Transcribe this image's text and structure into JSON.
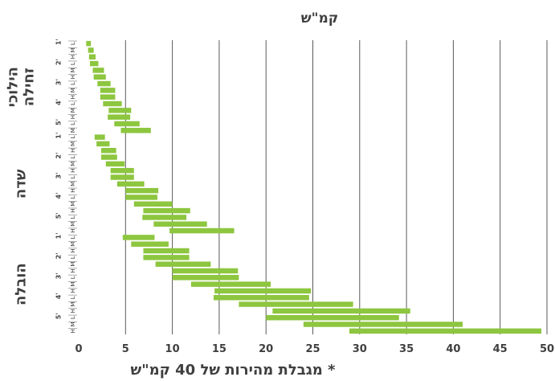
{
  "chart_data": {
    "type": "bar",
    "orientation": "horizontal-floating",
    "title": "קמ\"ש",
    "note": "* מגבלת מהירות של 40 קמ\"ש",
    "xlim": [
      0,
      50
    ],
    "xticks": [
      0,
      5,
      10,
      15,
      20,
      25,
      30,
      35,
      40,
      45,
      50
    ],
    "grid": true,
    "bar_color": "#8dc63f",
    "groups": [
      {
        "label": "הילוכי זחילה",
        "subgroups": [
          {
            "label": "1'",
            "rows": [
              {
                "tag": "L",
                "range": [
                  0.8,
                  1.3
                ]
              },
              {
                "tag": "M",
                "range": [
                  1.0,
                  1.6
                ]
              },
              {
                "tag": "H",
                "range": [
                  1.1,
                  1.8
                ]
              }
            ]
          },
          {
            "label": "2'",
            "rows": [
              {
                "tag": "L",
                "range": [
                  1.2,
                  2.1
                ]
              },
              {
                "tag": "M",
                "range": [
                  1.5,
                  2.7
                ]
              },
              {
                "tag": "H",
                "range": [
                  1.6,
                  2.9
                ]
              }
            ]
          },
          {
            "label": "3'",
            "rows": [
              {
                "tag": "L",
                "range": [
                  2.0,
                  3.4
                ]
              },
              {
                "tag": "M",
                "range": [
                  2.3,
                  3.9
                ]
              },
              {
                "tag": "H",
                "range": [
                  2.3,
                  3.9
                ]
              }
            ]
          },
          {
            "label": "4'",
            "rows": [
              {
                "tag": "L",
                "range": [
                  2.6,
                  4.6
                ]
              },
              {
                "tag": "M",
                "range": [
                  3.2,
                  5.6
                ]
              },
              {
                "tag": "H",
                "range": [
                  3.1,
                  5.5
                ]
              }
            ]
          },
          {
            "label": "5'",
            "rows": [
              {
                "tag": "L",
                "range": [
                  3.8,
                  6.5
                ]
              },
              {
                "tag": "M",
                "range": [
                  4.5,
                  7.7
                ]
              }
            ]
          }
        ]
      },
      {
        "label": "שדה",
        "subgroups": [
          {
            "label": "1'",
            "rows": [
              {
                "tag": "L",
                "range": [
                  1.7,
                  2.8
                ]
              },
              {
                "tag": "M",
                "range": [
                  1.9,
                  3.3
                ]
              },
              {
                "tag": "H",
                "range": [
                  2.4,
                  4.0
                ]
              }
            ]
          },
          {
            "label": "2'",
            "rows": [
              {
                "tag": "L",
                "range": [
                  2.4,
                  4.1
                ]
              },
              {
                "tag": "M",
                "range": [
                  2.9,
                  4.9
                ]
              },
              {
                "tag": "H",
                "range": [
                  3.4,
                  5.9
                ]
              }
            ]
          },
          {
            "label": "3'",
            "rows": [
              {
                "tag": "L",
                "range": [
                  3.4,
                  5.9
                ]
              },
              {
                "tag": "M",
                "range": [
                  4.1,
                  7.0
                ]
              },
              {
                "tag": "H",
                "range": [
                  5.0,
                  8.5
                ]
              }
            ]
          },
          {
            "label": "4'",
            "rows": [
              {
                "tag": "L",
                "range": [
                  5.0,
                  8.4
                ]
              },
              {
                "tag": "M",
                "range": [
                  5.9,
                  10.0
                ]
              },
              {
                "tag": "H",
                "range": [
                  6.9,
                  11.9
                ]
              }
            ]
          },
          {
            "label": "5'",
            "rows": [
              {
                "tag": "L",
                "range": [
                  6.8,
                  11.5
                ]
              },
              {
                "tag": "M",
                "range": [
                  8.0,
                  13.7
                ]
              },
              {
                "tag": "H",
                "range": [
                  9.7,
                  16.6
                ]
              }
            ]
          }
        ]
      },
      {
        "label": "הובלה",
        "subgroups": [
          {
            "label": "1'",
            "rows": [
              {
                "tag": "L",
                "range": [
                  4.7,
                  8.1
                ]
              },
              {
                "tag": "M",
                "range": [
                  5.6,
                  9.6
                ]
              },
              {
                "tag": "H",
                "range": [
                  6.9,
                  11.8
                ]
              }
            ]
          },
          {
            "label": "2'",
            "rows": [
              {
                "tag": "L",
                "range": [
                  6.9,
                  11.8
                ]
              },
              {
                "tag": "M",
                "range": [
                  8.2,
                  14.1
                ]
              },
              {
                "tag": "H",
                "range": [
                  10.0,
                  17.0
                ]
              }
            ]
          },
          {
            "label": "3'",
            "rows": [
              {
                "tag": "L",
                "range": [
                  10.0,
                  17.1
                ]
              },
              {
                "tag": "M",
                "range": [
                  12.0,
                  20.5
                ]
              },
              {
                "tag": "H",
                "range": [
                  14.5,
                  24.8
                ]
              }
            ]
          },
          {
            "label": "4'",
            "rows": [
              {
                "tag": "L",
                "range": [
                  14.4,
                  24.6
                ]
              },
              {
                "tag": "M",
                "range": [
                  17.1,
                  29.3
                ]
              },
              {
                "tag": "H",
                "range": [
                  20.7,
                  35.4
                ]
              }
            ]
          },
          {
            "label": "5'",
            "rows": [
              {
                "tag": "L",
                "range": [
                  20.0,
                  34.2
                ]
              },
              {
                "tag": "M",
                "range": [
                  24.0,
                  41.0
                ]
              },
              {
                "tag": "H",
                "range": [
                  28.9,
                  49.4
                ]
              }
            ]
          }
        ]
      }
    ]
  }
}
